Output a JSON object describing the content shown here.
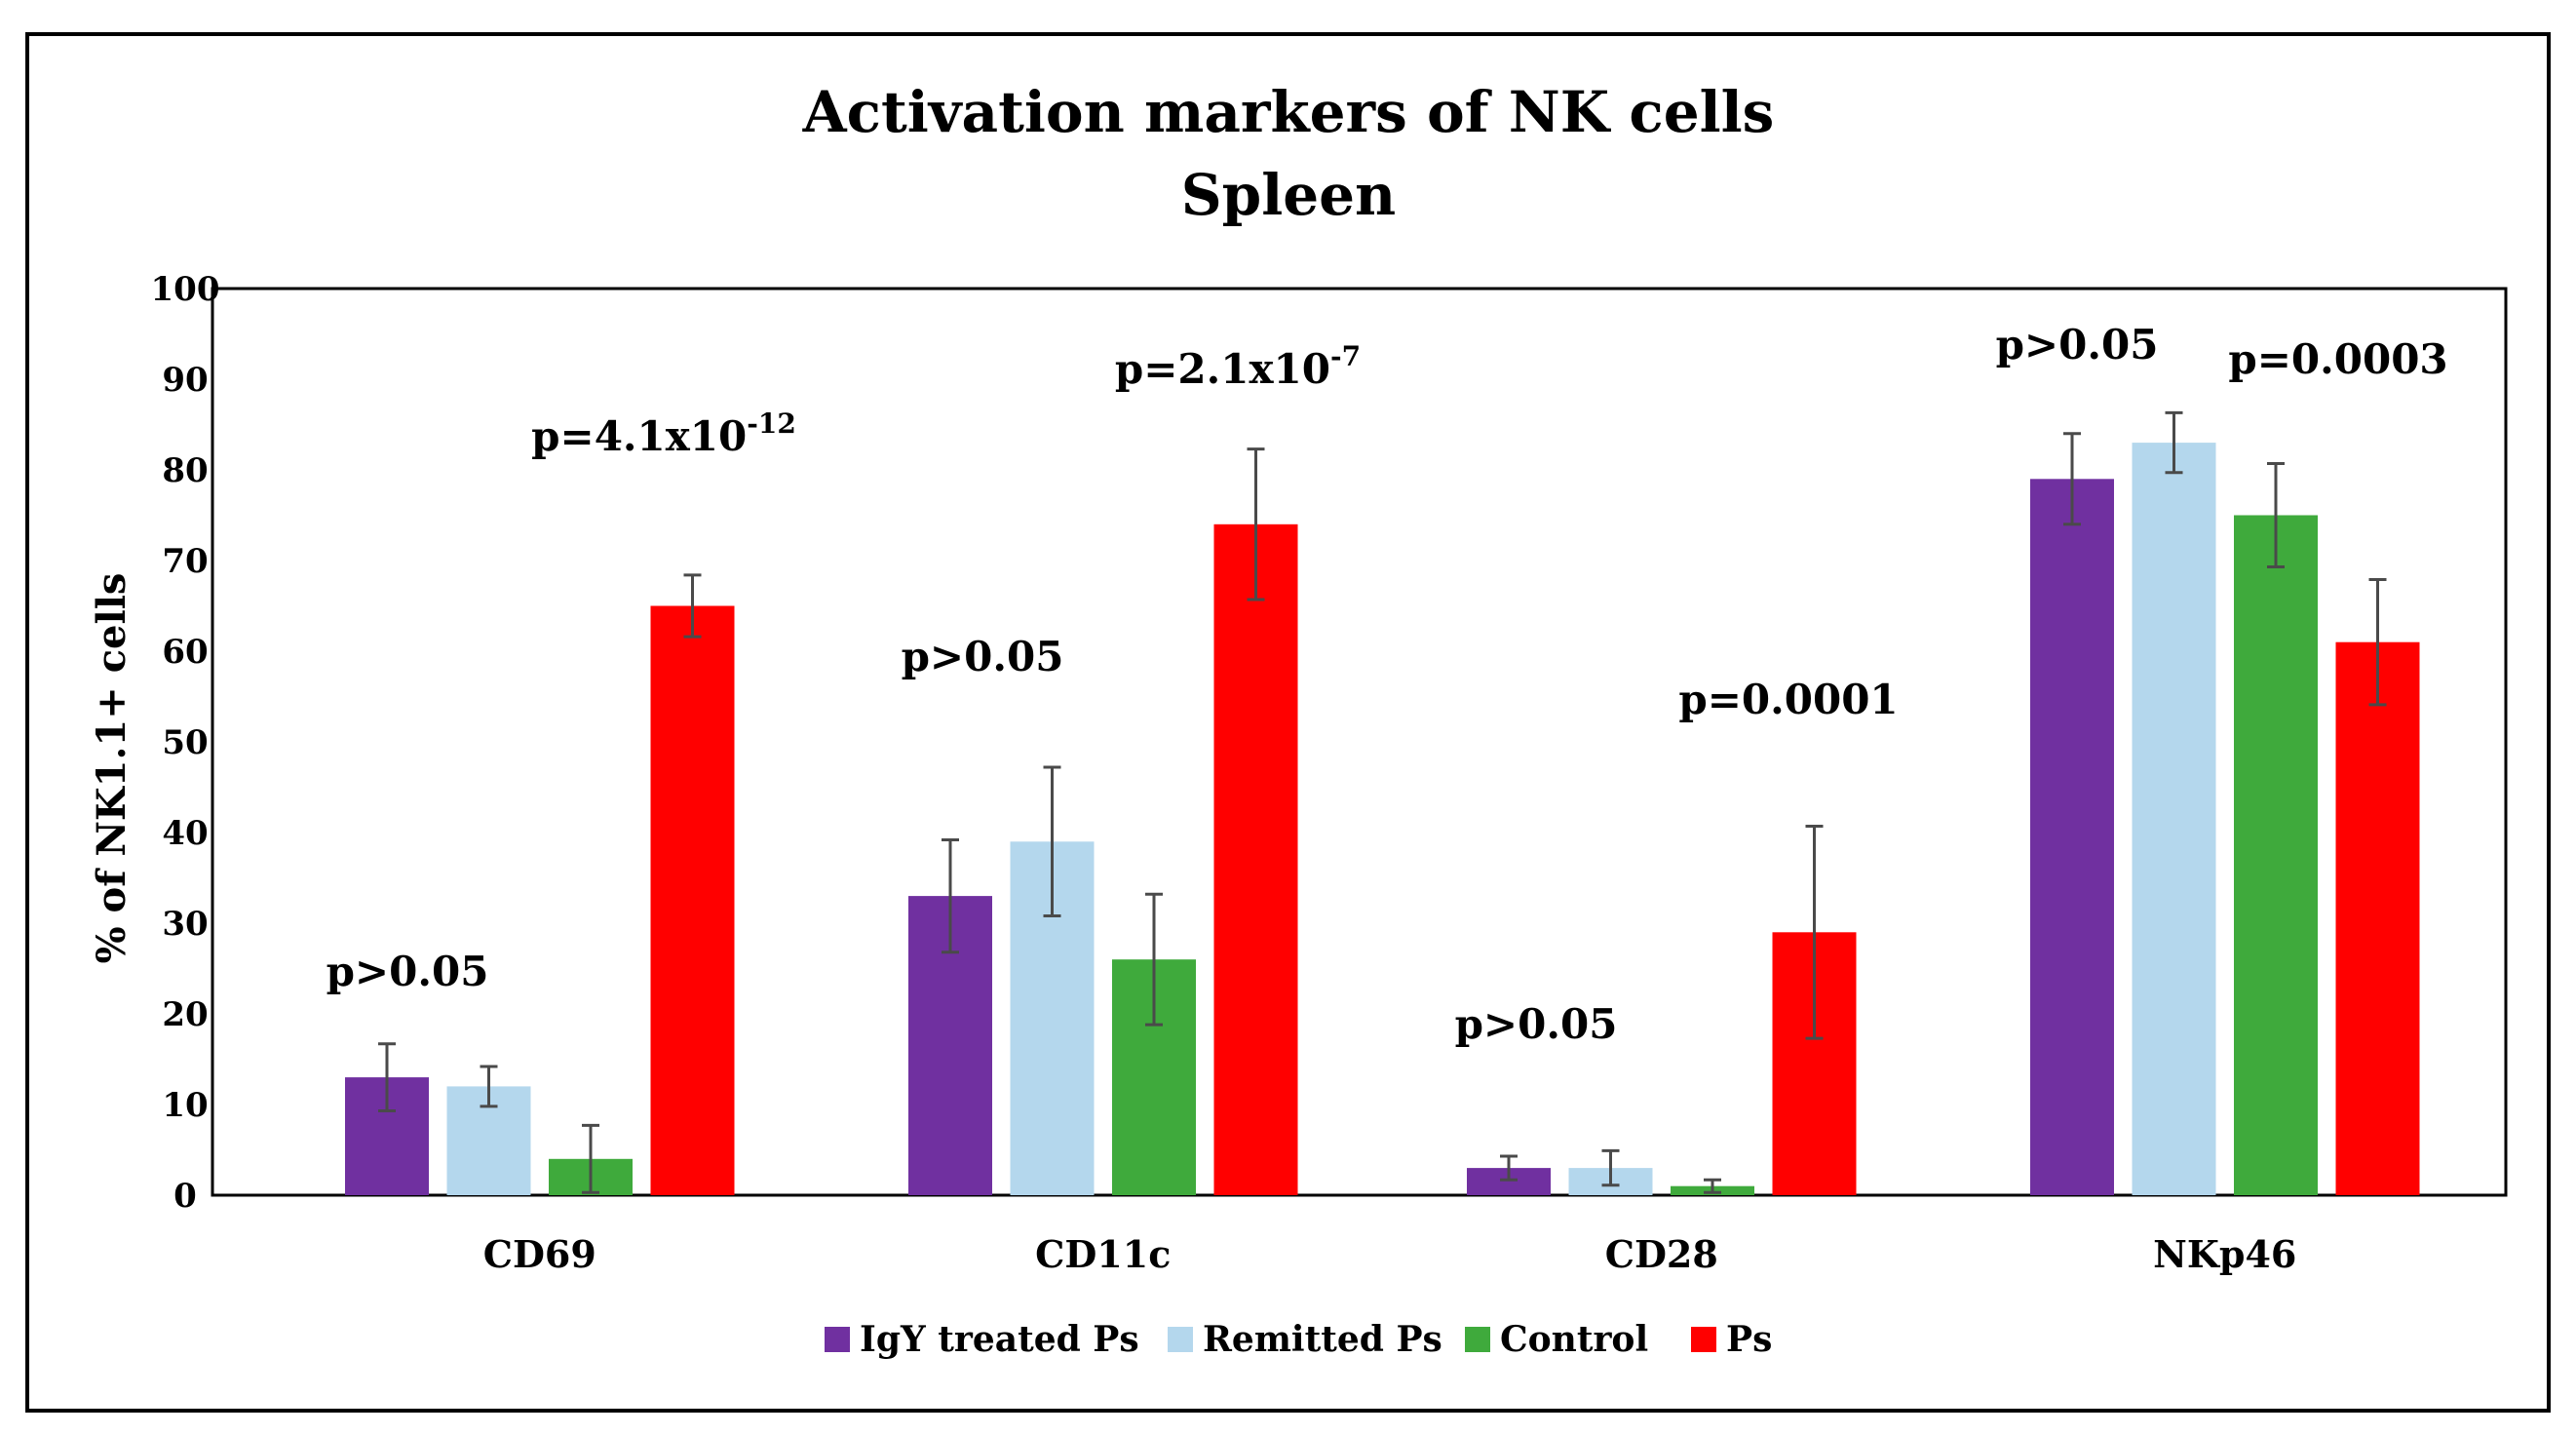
{
  "chart_data": {
    "type": "bar",
    "title": "Activation markers of NK cells",
    "subtitle": "Spleen",
    "ylabel": "% of NK1.1+ cells",
    "xlabel": "",
    "ylim": [
      0,
      100
    ],
    "yticks": [
      "0",
      "10",
      "20",
      "30",
      "40",
      "50",
      "60",
      "70",
      "80",
      "90",
      "100"
    ],
    "grid": false,
    "legend_position": "bottom",
    "categories": [
      "CD69",
      "CD11c",
      "CD28",
      "NKp46"
    ],
    "series": [
      {
        "name": "IgY treated Ps",
        "color": "#7030a0",
        "values": [
          13,
          33,
          3,
          79
        ],
        "errors": [
          3.7,
          6.2,
          1.3,
          5
        ]
      },
      {
        "name": "Remitted Ps",
        "color": "#b4d7ed",
        "values": [
          12,
          39,
          3,
          83
        ],
        "errors": [
          2.2,
          8.2,
          1.9,
          3.3
        ]
      },
      {
        "name": "Control",
        "color": "#3faa3c",
        "values": [
          4,
          26,
          1,
          75
        ],
        "errors": [
          3.7,
          7.2,
          0.7,
          5.7
        ]
      },
      {
        "name": "Ps",
        "color": "#ff0000",
        "values": [
          65,
          74,
          29,
          61
        ],
        "errors": [
          3.4,
          8.3,
          11.7,
          6.9
        ]
      }
    ],
    "annotations": [
      {
        "group": "CD69",
        "text": "p>0.05",
        "base": "",
        "exp": ""
      },
      {
        "group": "CD69",
        "text": "p=4.1x10",
        "base": "p=4.1x10",
        "exp": "-12"
      },
      {
        "group": "CD11c",
        "text": "p>0.05",
        "base": "",
        "exp": ""
      },
      {
        "group": "CD11c",
        "text": "p=2.1x10",
        "base": "p=2.1x10",
        "exp": "-7"
      },
      {
        "group": "CD28",
        "text": "p>0.05",
        "base": "",
        "exp": ""
      },
      {
        "group": "CD28",
        "text": "p=0.0001",
        "base": "",
        "exp": ""
      },
      {
        "group": "NKp46",
        "text": "p>0.05",
        "base": "",
        "exp": ""
      },
      {
        "group": "NKp46",
        "text": "p=0.0003",
        "base": "",
        "exp": ""
      }
    ]
  }
}
